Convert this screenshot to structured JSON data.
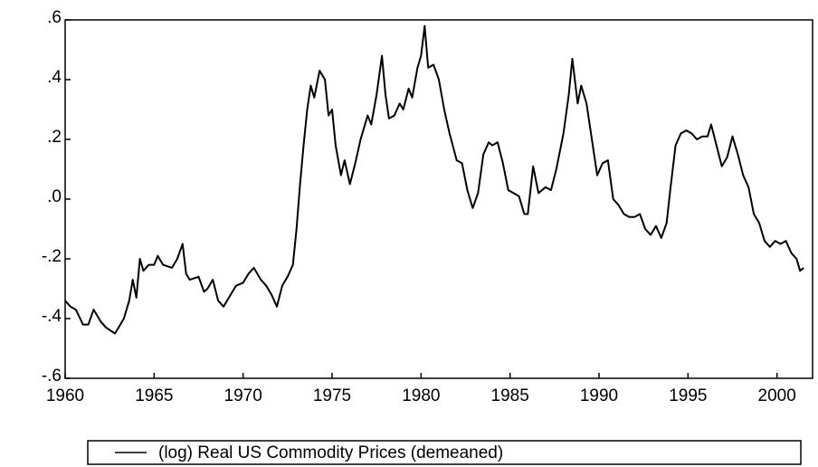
{
  "chart_data": {
    "type": "line",
    "x": [
      1960,
      1960.3,
      1960.6,
      1961,
      1961.3,
      1961.6,
      1962,
      1962.3,
      1962.8,
      1963.3,
      1963.6,
      1963.8,
      1964,
      1964.2,
      1964.4,
      1964.7,
      1965,
      1965.2,
      1965.5,
      1966,
      1966.3,
      1966.6,
      1966.8,
      1967,
      1967.5,
      1967.8,
      1968,
      1968.3,
      1968.6,
      1968.9,
      1969.3,
      1969.6,
      1970,
      1970.3,
      1970.6,
      1971,
      1971.3,
      1971.6,
      1971.9,
      1972.2,
      1972.5,
      1972.8,
      1973,
      1973.2,
      1973.4,
      1973.6,
      1973.8,
      1974,
      1974.3,
      1974.6,
      1974.8,
      1975,
      1975.2,
      1975.5,
      1975.7,
      1976,
      1976.3,
      1976.6,
      1977,
      1977.2,
      1977.5,
      1977.8,
      1978,
      1978.2,
      1978.5,
      1978.8,
      1979,
      1979.3,
      1979.5,
      1979.8,
      1980,
      1980.2,
      1980.4,
      1980.7,
      1981,
      1981.3,
      1981.6,
      1982,
      1982.3,
      1982.6,
      1982.9,
      1983.2,
      1983.5,
      1983.8,
      1984,
      1984.3,
      1984.6,
      1984.9,
      1985.2,
      1985.5,
      1985.8,
      1986,
      1986.3,
      1986.6,
      1987,
      1987.3,
      1987.6,
      1988,
      1988.3,
      1988.5,
      1988.8,
      1989,
      1989.3,
      1989.6,
      1989.9,
      1990.2,
      1990.5,
      1990.8,
      1991.1,
      1991.4,
      1991.7,
      1992,
      1992.3,
      1992.6,
      1992.9,
      1993.2,
      1993.5,
      1993.8,
      1994,
      1994.3,
      1994.6,
      1994.9,
      1995.2,
      1995.5,
      1995.8,
      1996.1,
      1996.3,
      1996.6,
      1996.9,
      1997.2,
      1997.5,
      1997.8,
      1998.1,
      1998.4,
      1998.7,
      1999,
      1999.3,
      1999.6,
      1999.9,
      2000.2,
      2000.5,
      2000.8,
      2001.1,
      2001.3,
      2001.5
    ],
    "series": [
      {
        "name": "(log) Real US Commodity Prices (demeaned)",
        "color": "#000000",
        "values": [
          -0.34,
          -0.36,
          -0.37,
          -0.42,
          -0.42,
          -0.37,
          -0.41,
          -0.43,
          -0.45,
          -0.4,
          -0.34,
          -0.27,
          -0.33,
          -0.2,
          -0.24,
          -0.22,
          -0.22,
          -0.19,
          -0.22,
          -0.23,
          -0.2,
          -0.15,
          -0.25,
          -0.27,
          -0.26,
          -0.31,
          -0.3,
          -0.27,
          -0.34,
          -0.36,
          -0.32,
          -0.29,
          -0.28,
          -0.25,
          -0.23,
          -0.27,
          -0.29,
          -0.32,
          -0.36,
          -0.29,
          -0.26,
          -0.22,
          -0.1,
          0.05,
          0.18,
          0.3,
          0.38,
          0.34,
          0.43,
          0.4,
          0.28,
          0.3,
          0.18,
          0.08,
          0.13,
          0.05,
          0.12,
          0.2,
          0.28,
          0.25,
          0.35,
          0.48,
          0.35,
          0.27,
          0.28,
          0.32,
          0.3,
          0.37,
          0.34,
          0.44,
          0.48,
          0.58,
          0.44,
          0.45,
          0.4,
          0.3,
          0.22,
          0.13,
          0.12,
          0.03,
          -0.03,
          0.02,
          0.15,
          0.19,
          0.18,
          0.19,
          0.12,
          0.03,
          0.02,
          0.01,
          -0.05,
          -0.05,
          0.11,
          0.02,
          0.04,
          0.03,
          0.1,
          0.22,
          0.35,
          0.47,
          0.32,
          0.38,
          0.32,
          0.2,
          0.08,
          0.12,
          0.13,
          0.0,
          -0.02,
          -0.05,
          -0.06,
          -0.06,
          -0.05,
          -0.1,
          -0.12,
          -0.09,
          -0.13,
          -0.08,
          0.03,
          0.18,
          0.22,
          0.23,
          0.22,
          0.2,
          0.21,
          0.21,
          0.25,
          0.18,
          0.11,
          0.14,
          0.21,
          0.15,
          0.08,
          0.04,
          -0.05,
          -0.08,
          -0.14,
          -0.16,
          -0.14,
          -0.15,
          -0.14,
          -0.18,
          -0.2,
          -0.24,
          -0.23
        ]
      }
    ],
    "xlim": [
      1960,
      2002
    ],
    "xticks": [
      1960,
      1965,
      1970,
      1975,
      1980,
      1985,
      1990,
      1995,
      2000
    ],
    "ylim": [
      -0.6,
      0.6
    ],
    "yticks": [
      {
        "value": -0.6,
        "label": "-.6"
      },
      {
        "value": -0.4,
        "label": "-.4"
      },
      {
        "value": -0.2,
        "label": "-.2"
      },
      {
        "value": 0,
        "label": ".0"
      },
      {
        "value": 0.2,
        "label": ".2"
      },
      {
        "value": 0.4,
        "label": ".4"
      },
      {
        "value": 0.6,
        "label": ".6"
      }
    ],
    "grid": false,
    "legend": "bottom"
  }
}
